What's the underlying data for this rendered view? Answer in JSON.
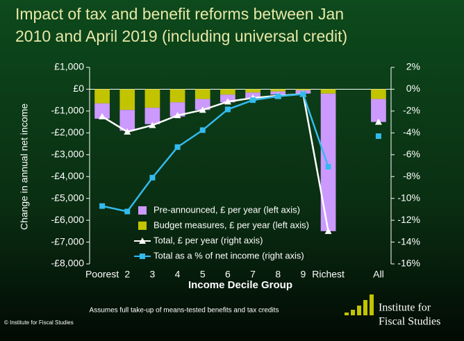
{
  "chart_data": {
    "type": "bar",
    "title": [
      "Impact of tax and benefit reforms between Jan",
      "2010 and April 2019 (including universal credit)"
    ],
    "y_label": "Change in annual net income",
    "x_label": "Income Decile Group",
    "note": "Assumes full take-up of means-tested benefits and tax credits",
    "copyright": "© Institute for Fiscal Studies",
    "logo": [
      "Institute for",
      "Fiscal Studies"
    ],
    "categories": [
      "Poorest",
      "2",
      "3",
      "4",
      "5",
      "6",
      "7",
      "8",
      "9",
      "Richest",
      null,
      "All"
    ],
    "series": [
      {
        "name": "Pre-announced, £ per year (left axis)",
        "type": "bar",
        "color": "#cc99ff",
        "values": [
          -700,
          -950,
          -750,
          -650,
          -500,
          -350,
          -250,
          -150,
          -150,
          -6300,
          null,
          -1050
        ]
      },
      {
        "name": "Budget measures, £ per year (left axis)",
        "type": "bar",
        "color": "#c2c400",
        "values": [
          -650,
          -950,
          -850,
          -600,
          -450,
          -250,
          -150,
          -100,
          -50,
          -200,
          null,
          -450
        ]
      },
      {
        "name": "Total, £ per year (right axis)",
        "type": "line",
        "marker": "triangle",
        "color": "#ffffff",
        "values": [
          -1250,
          -1950,
          -1650,
          -1200,
          -950,
          -570,
          -400,
          -300,
          -220,
          -6500,
          null,
          -1500
        ]
      },
      {
        "name": "Total as a % of net income (right axis)",
        "type": "line",
        "marker": "square",
        "color": "#33bbee",
        "axis": "y2",
        "values": [
          -10.7,
          -11.2,
          -8.1,
          -5.3,
          -3.75,
          -1.85,
          -1.0,
          -0.65,
          -0.45,
          -7.1,
          null,
          -4.3
        ]
      }
    ],
    "ylim": [
      -8000,
      1000
    ],
    "yticks": [
      {
        "value": 1000,
        "label": "£1,000"
      },
      {
        "value": 0,
        "label": "£0"
      },
      {
        "value": -1000,
        "label": "-£1,000"
      },
      {
        "value": -2000,
        "label": "-£2,000"
      },
      {
        "value": -3000,
        "label": "-£3,000"
      },
      {
        "value": -4000,
        "label": "-£4,000"
      },
      {
        "value": -5000,
        "label": "-£5,000"
      },
      {
        "value": -6000,
        "label": "-£6,000"
      },
      {
        "value": -7000,
        "label": "-£7,000"
      },
      {
        "value": -8000,
        "label": "-£8,000"
      }
    ],
    "y2lim": [
      -16,
      2
    ],
    "y2ticks": [
      {
        "value": 2,
        "label": "2%"
      },
      {
        "value": 0,
        "label": "0%"
      },
      {
        "value": -2,
        "label": "-2%"
      },
      {
        "value": -4,
        "label": "-4%"
      },
      {
        "value": -6,
        "label": "-6%"
      },
      {
        "value": -8,
        "label": "-8%"
      },
      {
        "value": -10,
        "label": "-10%"
      },
      {
        "value": -12,
        "label": "-12%"
      },
      {
        "value": -14,
        "label": "-14%"
      },
      {
        "value": -16,
        "label": "-16%"
      }
    ],
    "grid": false
  }
}
